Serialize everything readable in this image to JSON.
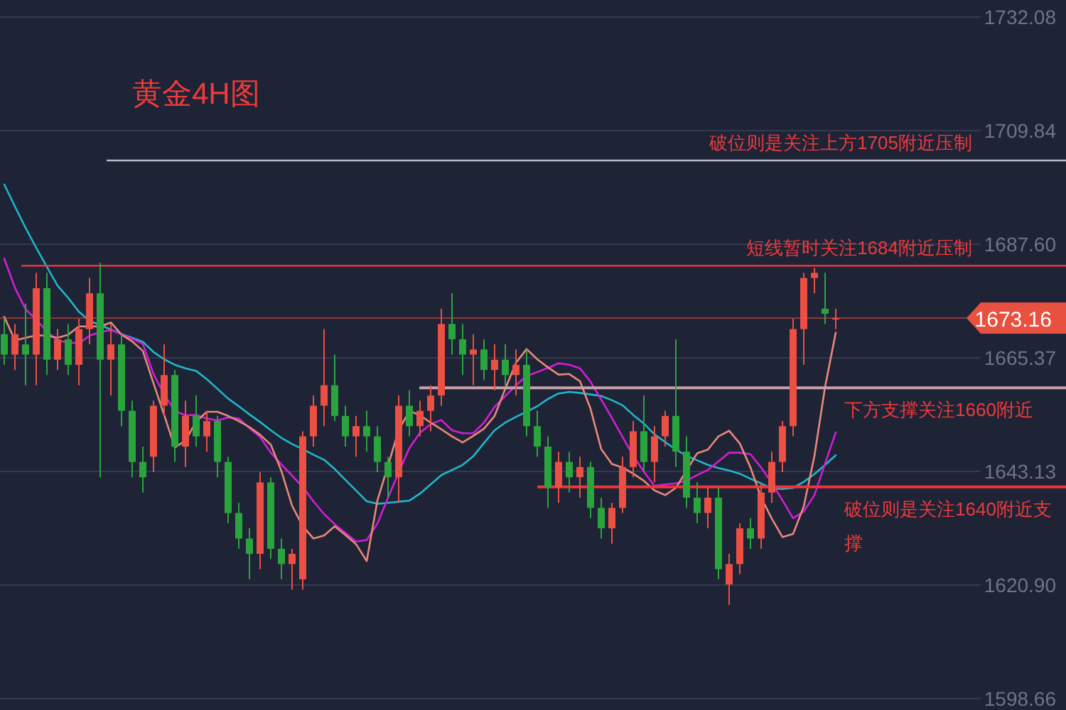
{
  "chart_data": {
    "type": "candlestick",
    "title": "黄金4H图",
    "categories": [
      null,
      null,
      null,
      null,
      null,
      null,
      null,
      null,
      null,
      null,
      null,
      null,
      null,
      null,
      null,
      null,
      null,
      null,
      null,
      null,
      null,
      null,
      null,
      null,
      null,
      null,
      null,
      null,
      null,
      null,
      null,
      null,
      null,
      null,
      null,
      null,
      null,
      null,
      null,
      null,
      null,
      null,
      null,
      null,
      null,
      null,
      null,
      null,
      null,
      null,
      null,
      null,
      null,
      null,
      null,
      null,
      null,
      null,
      null,
      null,
      null,
      null,
      null,
      null,
      null,
      null,
      null,
      null,
      null,
      null,
      null,
      null,
      null,
      null,
      null,
      null,
      null,
      null,
      null
    ],
    "ohlc": [
      [
        1670,
        1673,
        1664,
        1666
      ],
      [
        1666,
        1672,
        1663,
        1670
      ],
      [
        1668,
        1676,
        1660,
        1666
      ],
      [
        1666,
        1682,
        1660,
        1679
      ],
      [
        1679,
        1682,
        1662,
        1665
      ],
      [
        1665,
        1671,
        1663,
        1669
      ],
      [
        1669,
        1672,
        1662,
        1664
      ],
      [
        1664,
        1673,
        1660,
        1671
      ],
      [
        1671,
        1681,
        1668,
        1678
      ],
      [
        1678,
        1684,
        1642,
        1665
      ],
      [
        1665,
        1672,
        1658,
        1668
      ],
      [
        1668,
        1670,
        1652,
        1655
      ],
      [
        1655,
        1657,
        1642,
        1645
      ],
      [
        1645,
        1648,
        1639,
        1642
      ],
      [
        1646,
        1657,
        1643,
        1656
      ],
      [
        1656,
        1668,
        1654,
        1662
      ],
      [
        1662,
        1663,
        1645,
        1648
      ],
      [
        1648,
        1657,
        1644,
        1654
      ],
      [
        1654,
        1658,
        1648,
        1650
      ],
      [
        1650,
        1655,
        1647,
        1653
      ],
      [
        1653,
        1654,
        1642,
        1645
      ],
      [
        1645,
        1646,
        1633,
        1635
      ],
      [
        1635,
        1637,
        1628,
        1630
      ],
      [
        1630,
        1632,
        1622,
        1627
      ],
      [
        1627,
        1643,
        1624,
        1641
      ],
      [
        1641,
        1642,
        1626,
        1628
      ],
      [
        1628,
        1630,
        1622,
        1625
      ],
      [
        1625,
        1628,
        1620,
        1627
      ],
      [
        1622,
        1651,
        1620,
        1650
      ],
      [
        1650,
        1658,
        1648,
        1656
      ],
      [
        1656,
        1671,
        1652,
        1660
      ],
      [
        1660,
        1666,
        1653,
        1654
      ],
      [
        1654,
        1656,
        1648,
        1650
      ],
      [
        1650,
        1654,
        1646,
        1652
      ],
      [
        1652,
        1655,
        1647,
        1650
      ],
      [
        1650,
        1652,
        1643,
        1645
      ],
      [
        1645,
        1646,
        1638,
        1642
      ],
      [
        1642,
        1658,
        1637,
        1656
      ],
      [
        1656,
        1659,
        1650,
        1652
      ],
      [
        1652,
        1657,
        1650,
        1655
      ],
      [
        1655,
        1660,
        1651,
        1658
      ],
      [
        1658,
        1675,
        1656,
        1672
      ],
      [
        1672,
        1678,
        1666,
        1669
      ],
      [
        1669,
        1672,
        1662,
        1666
      ],
      [
        1666,
        1670,
        1660,
        1667
      ],
      [
        1667,
        1669,
        1661,
        1663
      ],
      [
        1663,
        1668,
        1659,
        1665
      ],
      [
        1665,
        1668,
        1660,
        1662
      ],
      [
        1662,
        1667,
        1658,
        1664
      ],
      [
        1664,
        1667,
        1650,
        1652
      ],
      [
        1652,
        1655,
        1646,
        1648
      ],
      [
        1648,
        1650,
        1636,
        1640
      ],
      [
        1640,
        1647,
        1637,
        1645
      ],
      [
        1645,
        1647,
        1639,
        1642
      ],
      [
        1642,
        1646,
        1638,
        1644
      ],
      [
        1644,
        1645,
        1634,
        1636
      ],
      [
        1636,
        1638,
        1630,
        1632
      ],
      [
        1632,
        1637,
        1629,
        1636
      ],
      [
        1636,
        1646,
        1635,
        1644
      ],
      [
        1644,
        1653,
        1642,
        1651
      ],
      [
        1651,
        1658,
        1643,
        1645
      ],
      [
        1645,
        1652,
        1641,
        1650
      ],
      [
        1650,
        1655,
        1648,
        1654
      ],
      [
        1654,
        1669,
        1644,
        1647
      ],
      [
        1647,
        1650,
        1636,
        1638
      ],
      [
        1638,
        1641,
        1633,
        1635
      ],
      [
        1635,
        1640,
        1632,
        1638
      ],
      [
        1638,
        1640,
        1622,
        1624
      ],
      [
        1621,
        1627,
        1617,
        1625
      ],
      [
        1625,
        1633,
        1623,
        1632
      ],
      [
        1632,
        1634,
        1628,
        1630
      ],
      [
        1630,
        1641,
        1628,
        1639
      ],
      [
        1639,
        1647,
        1637,
        1645
      ],
      [
        1645,
        1653,
        1643,
        1652
      ],
      [
        1652,
        1673,
        1650,
        1671
      ],
      [
        1671,
        1682,
        1664,
        1681
      ],
      [
        1681,
        1683,
        1678,
        1682
      ],
      [
        1675,
        1682,
        1672,
        1674
      ],
      [
        1673,
        1675,
        1671,
        1673.16
      ]
    ],
    "colors": [
      "#2aa53d",
      "#ec4f43",
      "#2aa53d",
      "#ec4f43",
      "#2aa53d",
      "#ec4f43",
      "#2aa53d",
      "#ec4f43",
      "#ec4f43",
      "#2aa53d",
      "#ec4f43",
      "#2aa53d",
      "#2aa53d",
      "#2aa53d",
      "#ec4f43",
      "#ec4f43",
      "#2aa53d",
      "#ec4f43",
      "#2aa53d",
      "#ec4f43",
      "#2aa53d",
      "#2aa53d",
      "#2aa53d",
      "#2aa53d",
      "#ec4f43",
      "#2aa53d",
      "#2aa53d",
      "#ec4f43",
      "#ec4f43",
      "#ec4f43",
      "#ec4f43",
      "#2aa53d",
      "#2aa53d",
      "#ec4f43",
      "#2aa53d",
      "#2aa53d",
      "#2aa53d",
      "#ec4f43",
      "#2aa53d",
      "#ec4f43",
      "#ec4f43",
      "#ec4f43",
      "#2aa53d",
      "#2aa53d",
      "#ec4f43",
      "#2aa53d",
      "#ec4f43",
      "#2aa53d",
      "#ec4f43",
      "#2aa53d",
      "#2aa53d",
      "#2aa53d",
      "#ec4f43",
      "#2aa53d",
      "#ec4f43",
      "#2aa53d",
      "#2aa53d",
      "#ec4f43",
      "#ec4f43",
      "#ec4f43",
      "#2aa53d",
      "#ec4f43",
      "#ec4f43",
      "#2aa53d",
      "#2aa53d",
      "#2aa53d",
      "#ec4f43",
      "#2aa53d",
      "#ec4f43",
      "#ec4f43",
      "#2aa53d",
      "#ec4f43",
      "#ec4f43",
      "#ec4f43",
      "#ec4f43",
      "#ec4f43",
      "#ec4f43",
      "#2aa53d",
      "#ec4f43"
    ],
    "series": [
      {
        "type": "line",
        "color": "#1fb8c9",
        "values": [
          1699.3,
          1695.0,
          1690.8,
          1686.9,
          1683.2,
          1679.5,
          1677.1,
          1674.4,
          1672.6,
          1671.8,
          1670.9,
          1670.0,
          1669.3,
          1668.5,
          1666.5,
          1665.1,
          1664.0,
          1663.3,
          1662.8,
          1661.2,
          1659.3,
          1657.4,
          1655.9,
          1654.3,
          1652.8,
          1651.2,
          1649.7,
          1648.5,
          1647.5,
          1646.4,
          1645.4,
          1643.6,
          1641.5,
          1639.4,
          1637.3,
          1636.8,
          1637.0,
          1637.2,
          1637.4,
          1638.8,
          1640.6,
          1642.4,
          1643.4,
          1644.4,
          1646.1,
          1648.7,
          1651.2,
          1652.7,
          1653.8,
          1654.8,
          1655.9,
          1657.3,
          1658.4,
          1658.7,
          1658.5,
          1658.2,
          1657.9,
          1657.1,
          1656.1,
          1654.2,
          1652.5,
          1650.4,
          1648.9,
          1647.4,
          1646.2,
          1645.3,
          1644.4,
          1643.8,
          1643.3,
          1642.7,
          1641.7,
          1640.8,
          1639.8,
          1639.7,
          1639.9,
          1641.1,
          1642.6,
          1644.4,
          1646.3
        ]
      },
      {
        "type": "line",
        "color": "#d21ed6",
        "values": [
          1684.8,
          1679.1,
          1674.9,
          1672.8,
          1670.6,
          1668.7,
          1668.4,
          1668.2,
          1669.7,
          1670.4,
          1670.8,
          1670.0,
          1669.1,
          1668.1,
          1662.2,
          1658.2,
          1655.0,
          1654.1,
          1654.2,
          1653.5,
          1653.1,
          1653.7,
          1653.5,
          1651.6,
          1649.9,
          1646.8,
          1644.5,
          1642.3,
          1640.1,
          1637.3,
          1634.8,
          1632.8,
          1631.1,
          1629.4,
          1629.7,
          1632.9,
          1638.0,
          1642.9,
          1647.7,
          1650.7,
          1652.4,
          1653.2,
          1651.2,
          1650.6,
          1650.6,
          1652.7,
          1655.8,
          1657.9,
          1660.0,
          1661.8,
          1662.6,
          1663.4,
          1664.3,
          1664.0,
          1663.3,
          1660.7,
          1657.2,
          1653.6,
          1649.9,
          1646.2,
          1643.1,
          1640.3,
          1640.6,
          1640.8,
          1641.3,
          1642.4,
          1643.4,
          1645.1,
          1646.8,
          1646.8,
          1646.5,
          1643.9,
          1640.9,
          1637.5,
          1634.0,
          1635.3,
          1638.5,
          1644.7,
          1650.8
        ]
      },
      {
        "type": "line",
        "color": "#e8897a",
        "values": [
          1673.4,
          1668.8,
          1669.3,
          1669.8,
          1669.7,
          1669.3,
          1669.9,
          1671.5,
          1671.5,
          1671.5,
          1672.3,
          1669.9,
          1668.6,
          1666.7,
          1660.4,
          1654.2,
          1647.8,
          1649.2,
          1652.9,
          1654.8,
          1654.8,
          1654.0,
          1653.0,
          1651.8,
          1650.3,
          1648.4,
          1643.2,
          1636.4,
          1632.4,
          1630.0,
          1630.6,
          1632.4,
          1630.7,
          1628.9,
          1625.6,
          1637.4,
          1644.3,
          1651.2,
          1655.0,
          1654.1,
          1652.7,
          1651.4,
          1650.0,
          1648.8,
          1650.1,
          1651.5,
          1654.0,
          1659.3,
          1664.4,
          1667.1,
          1665.1,
          1663.5,
          1662.1,
          1662.2,
          1660.8,
          1655.4,
          1647.5,
          1644.6,
          1643.9,
          1642.7,
          1641.3,
          1639.4,
          1638.5,
          1639.9,
          1643.3,
          1646.7,
          1647.4,
          1650.0,
          1651.1,
          1648.6,
          1643.9,
          1638.0,
          1633.9,
          1630.3,
          1630.9,
          1636.3,
          1646.2,
          1659.7,
          1670.3
        ]
      }
    ],
    "ylim": [
      1598.66,
      1732.08
    ],
    "yticks": [
      1732.08,
      1709.84,
      {
        "value": 1687.6,
        "label": "1687.60"
      },
      1665.37,
      1643.13,
      {
        "value": 1620.9,
        "label": "1620.90"
      },
      1598.66
    ],
    "tick_labels": "y",
    "grid": "y",
    "ref_lines": [
      {
        "axis": "y",
        "value": 1704.0,
        "label": "破位则是关注上方1705附近压制",
        "color": "#b8bcc8"
      },
      {
        "axis": "y",
        "value": 1683.4,
        "label": "短线暂时关注1684附近压制",
        "color": "#f0343a"
      },
      {
        "axis": "y",
        "value": 1673.16,
        "label": "1673.16",
        "color": "#e8503f"
      },
      {
        "axis": "y",
        "value": 1659.5,
        "label": "下方支撑关注1660附近",
        "color": "#c9a0a8"
      },
      {
        "axis": "y",
        "value": 1640.1,
        "label": "破位则是关注1640附近支撑",
        "color": "#f0343a"
      }
    ]
  }
}
